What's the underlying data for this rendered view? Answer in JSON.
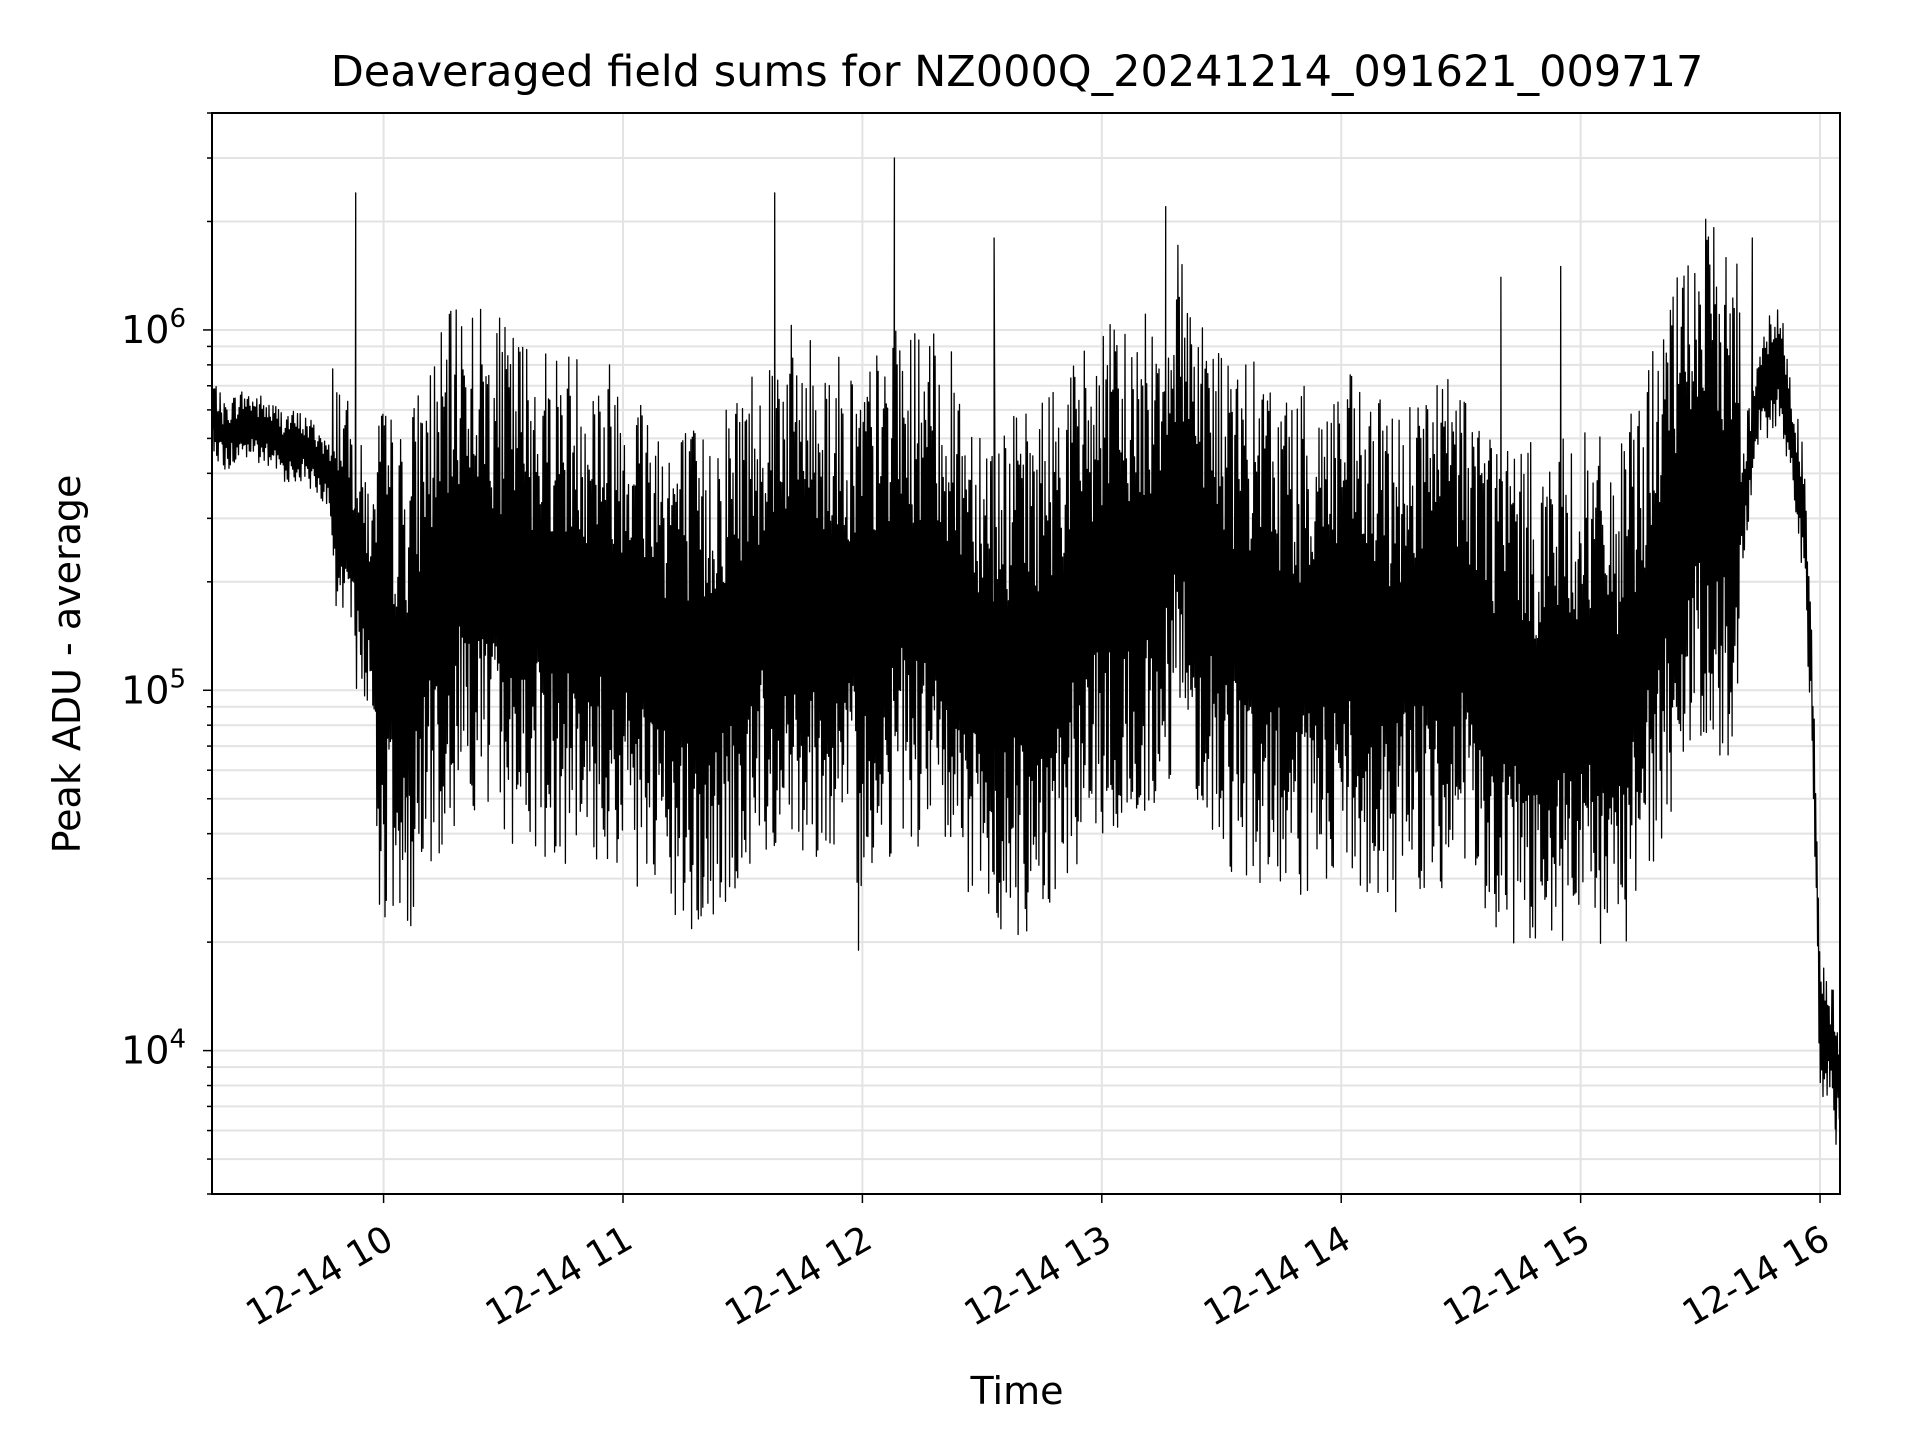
{
  "chart_data": {
    "type": "line",
    "title": "Deaveraged field sums for NZ000Q_20241214_091621_009717",
    "xlabel": "Time",
    "ylabel": "Peak ADU - average",
    "y_scale": "log",
    "x_range": [
      "2024-12-14 09:17",
      "2024-12-14 16:05"
    ],
    "ylim": [
      4000,
      4000000
    ],
    "x_ticks": [
      "12-14 10",
      "12-14 11",
      "12-14 12",
      "12-14 13",
      "12-14 14",
      "12-14 15",
      "12-14 16"
    ],
    "y_ticks": [
      {
        "value": 10000,
        "base": "10",
        "exp": "4"
      },
      {
        "value": 100000,
        "base": "10",
        "exp": "5"
      },
      {
        "value": 1000000,
        "base": "10",
        "exp": "6"
      }
    ],
    "grid": true,
    "line_color": "#000000",
    "series": [
      {
        "x": [
          "09:17",
          "09:20",
          "09:25",
          "09:30",
          "09:35",
          "09:40",
          "09:45",
          "09:50",
          "09:55",
          "10:00",
          "10:05",
          "10:10",
          "10:20",
          "10:30",
          "10:40",
          "10:50",
          "11:00",
          "11:10",
          "11:20",
          "11:30",
          "11:40",
          "11:50",
          "12:00",
          "12:10",
          "12:20",
          "12:30",
          "12:40",
          "12:50",
          "13:00",
          "13:10",
          "13:20",
          "13:30",
          "13:40",
          "13:50",
          "14:00",
          "14:10",
          "14:20",
          "14:30",
          "14:40",
          "14:50",
          "15:00",
          "15:10",
          "15:20",
          "15:30",
          "15:40",
          "15:45",
          "15:50",
          "15:53",
          "15:56",
          "15:58",
          "16:00",
          "16:03",
          "16:05"
        ],
        "y": [
          600000,
          500000,
          550000,
          520000,
          480000,
          470000,
          420000,
          300000,
          200000,
          120000,
          100000,
          150000,
          250000,
          200000,
          180000,
          170000,
          160000,
          120000,
          100000,
          150000,
          200000,
          180000,
          150000,
          200000,
          180000,
          120000,
          110000,
          150000,
          200000,
          200000,
          350000,
          170000,
          150000,
          130000,
          150000,
          120000,
          140000,
          150000,
          100000,
          90000,
          100000,
          90000,
          200000,
          400000,
          300000,
          700000,
          800000,
          500000,
          300000,
          100000,
          12000,
          10000,
          8000
        ],
        "spikes": [
          {
            "x": "09:53",
            "y": 2400000
          },
          {
            "x": "11:38",
            "y": 2400000
          },
          {
            "x": "12:08",
            "y": 3000000
          },
          {
            "x": "12:33",
            "y": 1800000
          },
          {
            "x": "13:16",
            "y": 2200000
          },
          {
            "x": "14:40",
            "y": 1400000
          },
          {
            "x": "14:55",
            "y": 1500000
          },
          {
            "x": "15:43",
            "y": 1800000
          },
          {
            "x": "10:06",
            "y": 23000
          },
          {
            "x": "11:20",
            "y": 25000
          },
          {
            "x": "11:59",
            "y": 19000
          },
          {
            "x": "12:39",
            "y": 21000
          },
          {
            "x": "13:55",
            "y": 40000
          },
          {
            "x": "16:04",
            "y": 5500
          }
        ]
      }
    ]
  }
}
